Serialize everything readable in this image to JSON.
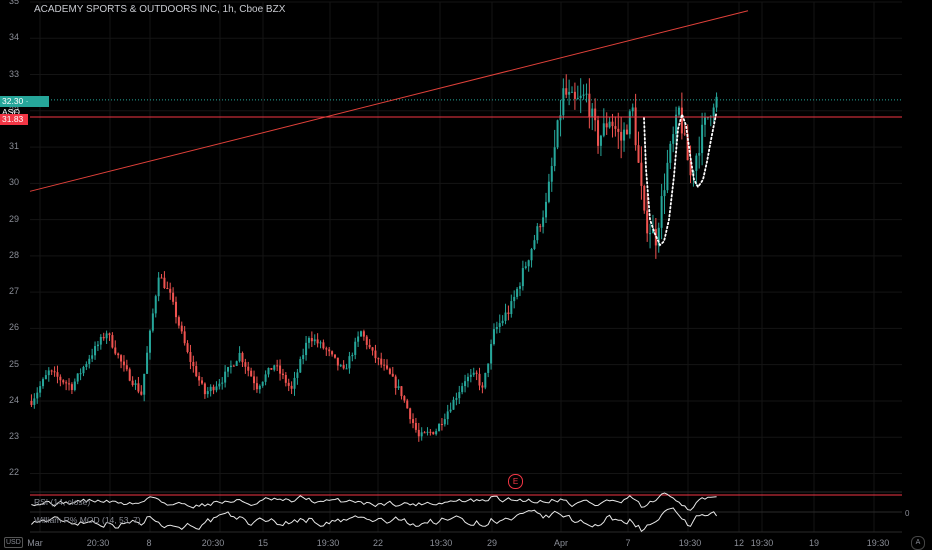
{
  "chart_data": {
    "type": "candlestick",
    "title": "ACADEMY SPORTS & OUTDOORS INC, 1h, Cboe BZX",
    "currency": "USD",
    "ylim": [
      21.6,
      35.0
    ],
    "yticks": [
      22,
      23,
      24,
      25,
      26,
      27,
      28,
      29,
      30,
      31,
      32,
      33,
      34,
      35
    ],
    "xticks": [
      "Mar",
      "20:30",
      "8",
      "20:30",
      "15",
      "19:30",
      "22",
      "19:30",
      "29",
      "Apr",
      "7",
      "19:30",
      "12",
      "19:30",
      "19",
      "19:30"
    ],
    "last_price": {
      "value": "32.30",
      "symbol": "ASO"
    },
    "level_price": "31.83",
    "colors": {
      "up": "#26a69a",
      "down": "#ef5350",
      "level": "#f23645",
      "trendline": "#e0413a",
      "pattern": "#ffffff"
    },
    "waypoints": [
      [
        0,
        24.0
      ],
      [
        6,
        24.8
      ],
      [
        14,
        24.4
      ],
      [
        20,
        25.2
      ],
      [
        26,
        25.9
      ],
      [
        32,
        24.9
      ],
      [
        38,
        24.2
      ],
      [
        44,
        27.5
      ],
      [
        48,
        26.9
      ],
      [
        54,
        25.3
      ],
      [
        60,
        24.2
      ],
      [
        66,
        24.6
      ],
      [
        72,
        25.3
      ],
      [
        78,
        24.4
      ],
      [
        84,
        25.0
      ],
      [
        90,
        24.3
      ],
      [
        96,
        25.8
      ],
      [
        102,
        25.4
      ],
      [
        108,
        24.8
      ],
      [
        114,
        25.9
      ],
      [
        118,
        25.3
      ],
      [
        124,
        24.7
      ],
      [
        128,
        24.2
      ],
      [
        134,
        23.0
      ],
      [
        140,
        23.2
      ],
      [
        146,
        24.0
      ],
      [
        150,
        24.6
      ],
      [
        154,
        24.7
      ],
      [
        156,
        24.3
      ],
      [
        160,
        25.9
      ],
      [
        166,
        26.6
      ],
      [
        172,
        28.0
      ],
      [
        178,
        29.4
      ],
      [
        184,
        32.5
      ],
      [
        188,
        32.2
      ],
      [
        192,
        32.4
      ],
      [
        196,
        31.2
      ],
      [
        200,
        31.8
      ],
      [
        204,
        31.2
      ],
      [
        208,
        32.0
      ],
      [
        212,
        29.0
      ],
      [
        216,
        28.5
      ],
      [
        220,
        30.5
      ],
      [
        224,
        32.0
      ],
      [
        228,
        30.2
      ],
      [
        232,
        31.4
      ],
      [
        236,
        32.3
      ]
    ],
    "indicators": [
      {
        "label": "RSI (14, close)"
      },
      {
        "label": "William R% MOD (14, 53, 7)",
        "zero_label": "0"
      }
    ],
    "earnings_marker": "E"
  }
}
